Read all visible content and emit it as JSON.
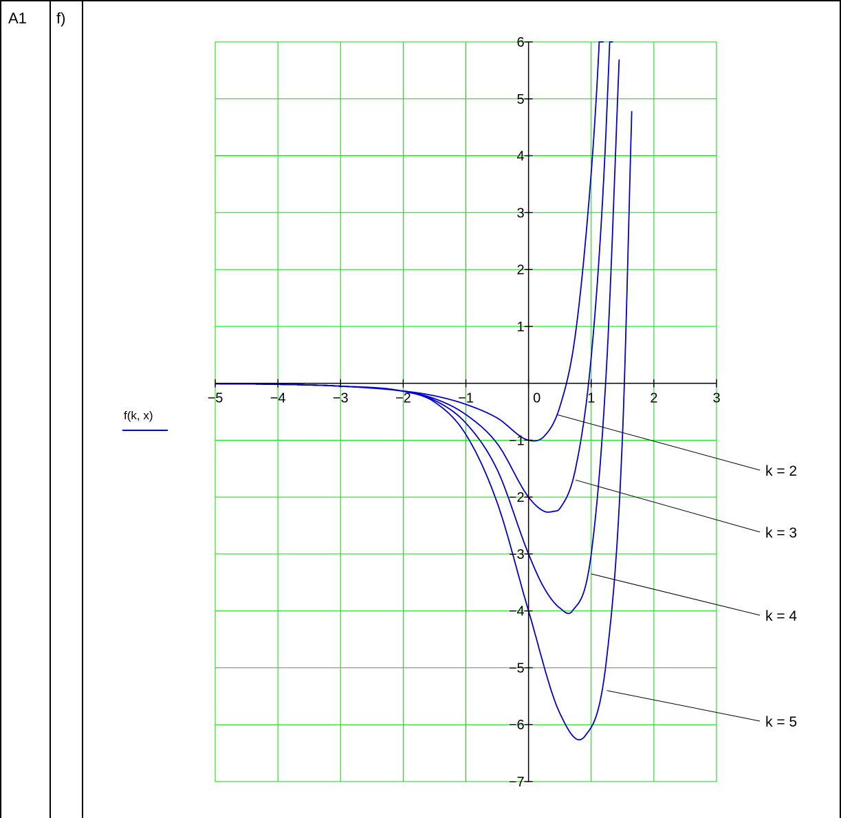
{
  "table": {
    "col1": "A1",
    "col2": "f)"
  },
  "chart_data": {
    "type": "line",
    "ylabel": "f(k, x)",
    "xlim": [
      -5,
      3
    ],
    "ylim": [
      -7,
      6
    ],
    "x_ticks": [
      -5,
      -4,
      -3,
      -2,
      -1,
      0,
      1,
      2,
      3
    ],
    "y_ticks": [
      -7,
      -6,
      -5,
      -4,
      -3,
      -2,
      -1,
      1,
      2,
      3,
      4,
      5,
      6
    ],
    "x_tick_labels": [
      "−5",
      "−4",
      "−3",
      "−2",
      "−1",
      "0",
      "1",
      "2",
      "3"
    ],
    "y_tick_labels": [
      "−7",
      "−6",
      "−5",
      "−4",
      "−3",
      "−2",
      "−1",
      "1",
      "2",
      "3",
      "4",
      "5",
      "6"
    ],
    "grid": true,
    "grid_color": "#00dd00",
    "line_color": "#0000cc",
    "series": [
      {
        "name": "k = 2",
        "k": 2,
        "x": [
          -5,
          -4,
          -3,
          -2,
          -1.5,
          -1,
          -0.5,
          0,
          0.25,
          0.5,
          0.75,
          1,
          1.1,
          1.2
        ],
        "y": [
          -0.007,
          -0.018,
          -0.05,
          -0.135,
          -0.22,
          -0.37,
          -0.61,
          -1,
          -0.93,
          -0.41,
          0.88,
          3.7,
          5.4,
          7.7
        ]
      },
      {
        "name": "k = 3",
        "k": 3,
        "x": [
          -5,
          -4,
          -3,
          -2,
          -1.5,
          -1,
          -0.5,
          0,
          0.25,
          0.4,
          0.5,
          0.75,
          1,
          1.2,
          1.35
        ],
        "y": [
          -0.007,
          -0.018,
          -0.05,
          -0.14,
          -0.27,
          -0.55,
          -1.06,
          -2,
          -2.25,
          -2.25,
          -2.2,
          -1.5,
          0.46,
          3.6,
          7.5
        ]
      },
      {
        "name": "k = 4",
        "k": 4,
        "x": [
          -5,
          -4,
          -3,
          -2,
          -1.5,
          -1,
          -0.5,
          0,
          0.25,
          0.5,
          0.7,
          1,
          1.25,
          1.45
        ],
        "y": [
          -0.007,
          -0.018,
          -0.05,
          -0.14,
          -0.3,
          -0.7,
          -1.52,
          -3,
          -3.6,
          -3.95,
          -4.0,
          -3.0,
          0.4,
          5.8
        ]
      },
      {
        "name": "k = 5",
        "k": 5,
        "x": [
          -5,
          -4,
          -3,
          -2,
          -1.5,
          -1,
          -0.5,
          0,
          0.5,
          0.9,
          1.25,
          1.5,
          1.65
        ],
        "y": [
          -0.007,
          -0.018,
          -0.05,
          -0.14,
          -0.33,
          -0.9,
          -2.1,
          -4,
          -5.8,
          -6.2,
          -4.8,
          -0.9,
          4.9
        ]
      }
    ]
  }
}
